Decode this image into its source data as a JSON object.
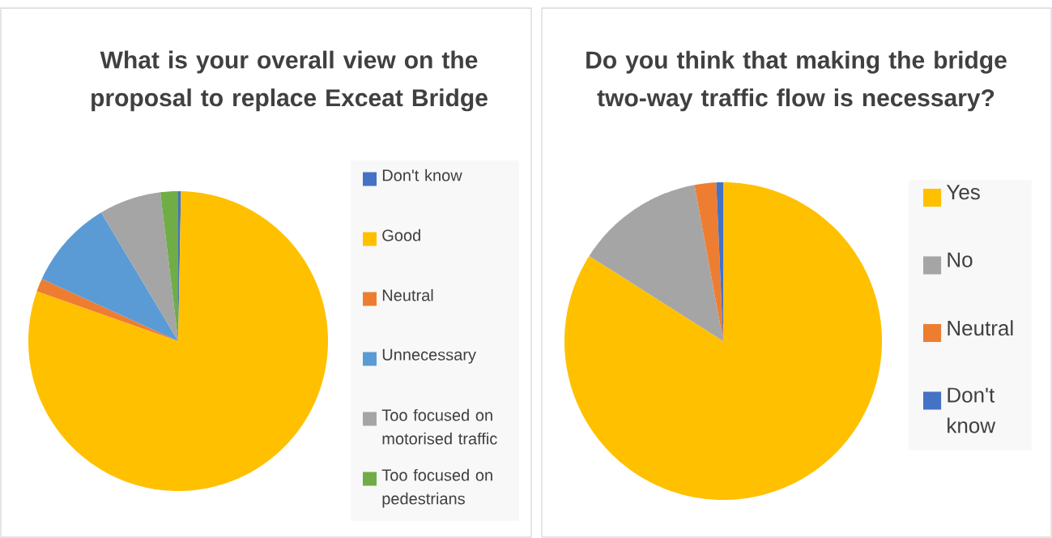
{
  "chart_data": [
    {
      "type": "pie",
      "title": "What is your overall view on the proposal to replace Exceat Bridge",
      "categories": [
        "Don't know",
        "Good",
        "Neutral",
        "Unnecessary",
        "Too focused on motorised traffic",
        "Too focused on pedestrians"
      ],
      "values": [
        0.3,
        80.1,
        1.4,
        9.6,
        6.7,
        1.9
      ],
      "colors": [
        "#4472c4",
        "#ffc000",
        "#ed7d31",
        "#5b9bd5",
        "#a5a5a5",
        "#70ad47"
      ],
      "legend": "right"
    },
    {
      "type": "pie",
      "title": "Do you think that making the bridge two-way traffic flow is necessary?",
      "categories": [
        "Yes",
        "No",
        "Neutral",
        "Don't know"
      ],
      "values": [
        84.0,
        13.1,
        2.2,
        0.7
      ],
      "colors": [
        "#ffc000",
        "#a5a5a5",
        "#ed7d31",
        "#4472c4"
      ],
      "legend": "right"
    }
  ]
}
